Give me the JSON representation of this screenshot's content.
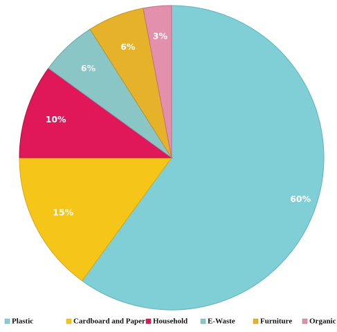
{
  "chart_data": {
    "type": "pie",
    "title": "",
    "legend_position": "bottom",
    "start_angle": "12 o'clock",
    "direction": "clockwise",
    "slices": [
      {
        "label": "Plastic",
        "value": 60,
        "display": "60%",
        "color": "#80cfd6",
        "stroke": "#5fb2ba",
        "label_color": "#ffffff"
      },
      {
        "label": "Cardboard and Paper",
        "value": 15,
        "display": "15%",
        "color": "#f5c518",
        "stroke": "#d9a910",
        "label_color": "#ffffff"
      },
      {
        "label": "Household",
        "value": 10,
        "display": "10%",
        "color": "#e0185a",
        "stroke": "#b50d44",
        "label_color": "#ffffff"
      },
      {
        "label": "E-Waste",
        "value": 6,
        "display": "6%",
        "color": "#8bc6c7",
        "stroke": "#64a8a9",
        "label_color": "#f2f2f2"
      },
      {
        "label": "Furniture",
        "value": 6,
        "display": "6%",
        "color": "#e5b22a",
        "stroke": "#c2911a",
        "label_color": "#ffffff"
      },
      {
        "label": "Organic",
        "value": 3,
        "display": "3%",
        "color": "#e290ab",
        "stroke": "#c36b8a",
        "label_color": "#ffffff"
      }
    ]
  }
}
